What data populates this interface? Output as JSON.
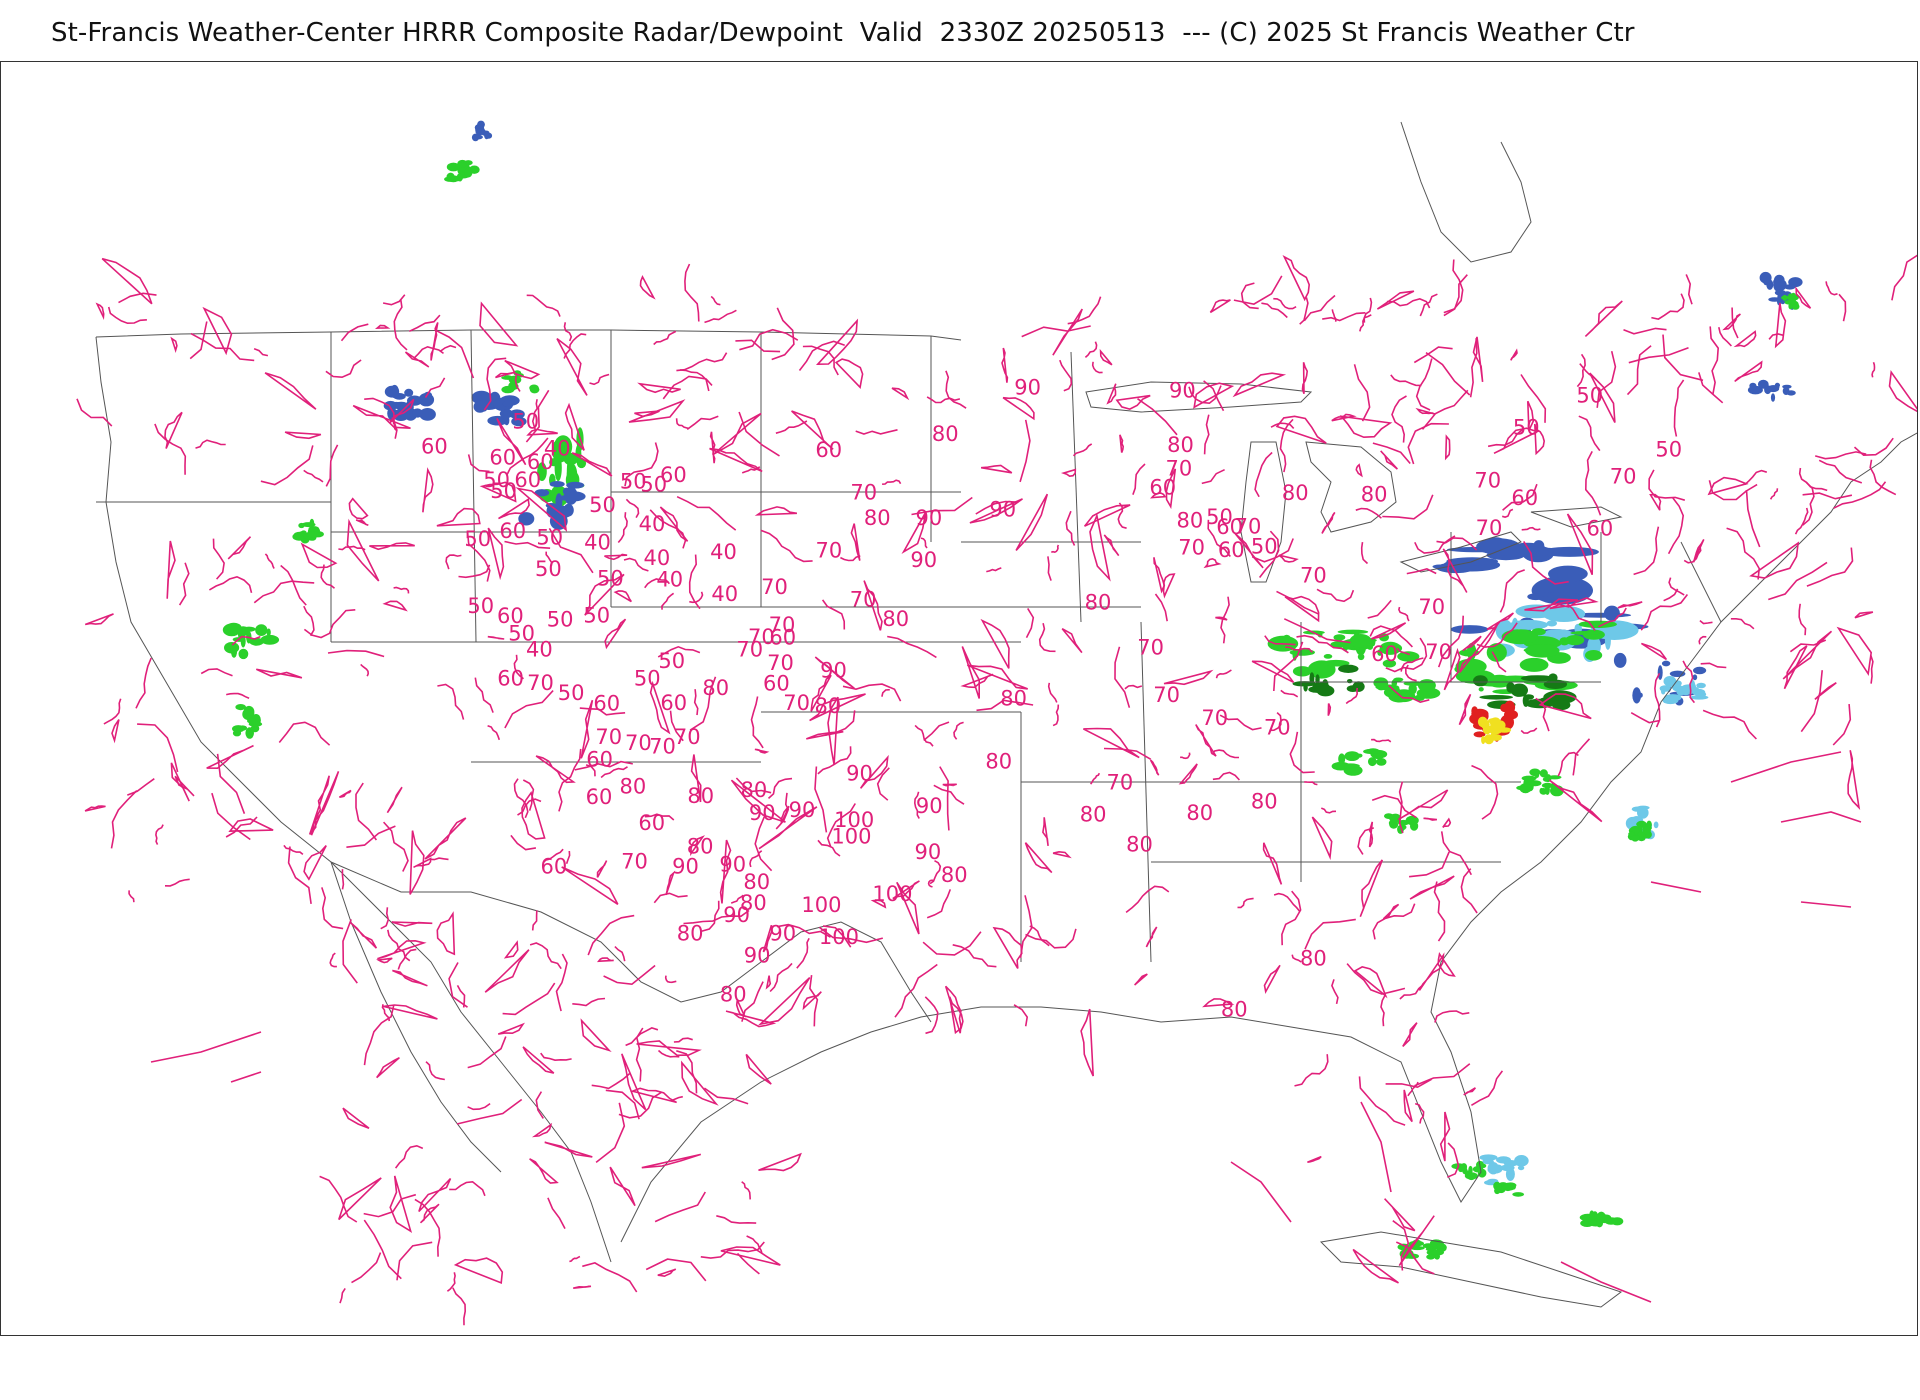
{
  "header": {
    "title": "St-Francis Weather-Center HRRR Composite Radar/Dewpoint  Valid  2330Z 20250513  --- (C) 2025 St Francis Weather Ctr"
  },
  "colors": {
    "dewpoint_contour": "#e0207a",
    "border": "#555555",
    "radar_light": "#6ec8e8",
    "radar_mid": "#3a5db8",
    "radar_green": "#2bd02b",
    "radar_dark_green": "#157a15",
    "radar_yellow": "#f0e020",
    "radar_red": "#e02020"
  },
  "dewpoint_labels": [
    {
      "text": "50",
      "lon": -119.5,
      "lat": 48.8
    },
    {
      "text": "40",
      "lon": -118.0,
      "lat": 47.6
    },
    {
      "text": "60",
      "lon": -124.6,
      "lat": 47.3
    },
    {
      "text": "60",
      "lon": -121.0,
      "lat": 47.0
    },
    {
      "text": "60",
      "lon": -119.0,
      "lat": 46.9
    },
    {
      "text": "60",
      "lon": -111.9,
      "lat": 46.6
    },
    {
      "text": "50",
      "lon": -114.1,
      "lat": 46.2
    },
    {
      "text": "50",
      "lon": -113.0,
      "lat": 46.1
    },
    {
      "text": "50",
      "lon": -121.5,
      "lat": 45.9
    },
    {
      "text": "60",
      "lon": -119.8,
      "lat": 46.0
    },
    {
      "text": "50",
      "lon": -121.2,
      "lat": 45.4
    },
    {
      "text": "50",
      "lon": -115.9,
      "lat": 45.0
    },
    {
      "text": "40",
      "lon": -113.3,
      "lat": 44.2
    },
    {
      "text": "60",
      "lon": -121.0,
      "lat": 43.5
    },
    {
      "text": "50",
      "lon": -119.0,
      "lat": 43.3
    },
    {
      "text": "40",
      "lon": -116.4,
      "lat": 43.2
    },
    {
      "text": "50",
      "lon": -123.0,
      "lat": 43.0
    },
    {
      "text": "40",
      "lon": -113.2,
      "lat": 42.6
    },
    {
      "text": "40",
      "lon": -109.5,
      "lat": 43.0
    },
    {
      "text": "50",
      "lon": -119.3,
      "lat": 41.8
    },
    {
      "text": "50",
      "lon": -115.9,
      "lat": 41.5
    },
    {
      "text": "40",
      "lon": -112.6,
      "lat": 41.6
    },
    {
      "text": "40",
      "lon": -109.6,
      "lat": 41.0
    },
    {
      "text": "50",
      "lon": -123.4,
      "lat": 39.8
    },
    {
      "text": "60",
      "lon": -121.8,
      "lat": 39.4
    },
    {
      "text": "50",
      "lon": -119.0,
      "lat": 39.4
    },
    {
      "text": "50",
      "lon": -116.9,
      "lat": 39.7
    },
    {
      "text": "50",
      "lon": -121.3,
      "lat": 38.6
    },
    {
      "text": "40",
      "lon": -120.4,
      "lat": 37.9
    },
    {
      "text": "60",
      "lon": -122.3,
      "lat": 36.4
    },
    {
      "text": "70",
      "lon": -120.6,
      "lat": 36.3
    },
    {
      "text": "50",
      "lon": -118.9,
      "lat": 35.9
    },
    {
      "text": "60",
      "lon": -116.9,
      "lat": 35.5
    },
    {
      "text": "50",
      "lon": -112.9,
      "lat": 37.7
    },
    {
      "text": "50",
      "lon": -114.4,
      "lat": 36.8
    },
    {
      "text": "60",
      "lon": -113.0,
      "lat": 35.7
    },
    {
      "text": "80",
      "lon": -110.5,
      "lat": 36.5
    },
    {
      "text": "70",
      "lon": -107.7,
      "lat": 39.0
    },
    {
      "text": "60",
      "lon": -106.5,
      "lat": 39.0
    },
    {
      "text": "70",
      "lon": -108.4,
      "lat": 38.4
    },
    {
      "text": "70",
      "lon": -106.7,
      "lat": 37.8
    },
    {
      "text": "60",
      "lon": -107.0,
      "lat": 36.8
    },
    {
      "text": "70",
      "lon": -117.0,
      "lat": 33.9
    },
    {
      "text": "70",
      "lon": -115.3,
      "lat": 33.7
    },
    {
      "text": "70",
      "lon": -113.9,
      "lat": 33.6
    },
    {
      "text": "70",
      "lon": -112.4,
      "lat": 34.1
    },
    {
      "text": "60",
      "lon": -117.7,
      "lat": 32.8
    },
    {
      "text": "80",
      "lon": -115.9,
      "lat": 31.6
    },
    {
      "text": "60",
      "lon": -118.0,
      "lat": 31.0
    },
    {
      "text": "80",
      "lon": -111.9,
      "lat": 31.3
    },
    {
      "text": "60",
      "lon": -115.0,
      "lat": 29.9
    },
    {
      "text": "80",
      "lon": -112.2,
      "lat": 28.9
    },
    {
      "text": "70",
      "lon": -116.3,
      "lat": 28.0
    },
    {
      "text": "60",
      "lon": -121.3,
      "lat": 27.5
    },
    {
      "text": "90",
      "lon": -113.2,
      "lat": 27.9
    },
    {
      "text": "90",
      "lon": -110.3,
      "lat": 28.1
    },
    {
      "text": "80",
      "lon": -108.9,
      "lat": 27.3
    },
    {
      "text": "80",
      "lon": -109.2,
      "lat": 26.3
    },
    {
      "text": "90",
      "lon": -110.3,
      "lat": 25.7
    },
    {
      "text": "80",
      "lon": -113.3,
      "lat": 24.7
    },
    {
      "text": "90",
      "lon": -107.5,
      "lat": 24.9
    },
    {
      "text": "90",
      "lon": -109.2,
      "lat": 23.8
    },
    {
      "text": "80",
      "lon": -110.9,
      "lat": 21.9
    },
    {
      "text": "100",
      "lon": -105.0,
      "lat": 26.3
    },
    {
      "text": "100",
      "lon": -104.0,
      "lat": 24.8
    },
    {
      "text": "100",
      "lon": -100.6,
      "lat": 26.9
    },
    {
      "text": "70",
      "lon": -105.9,
      "lat": 35.9
    },
    {
      "text": "80",
      "lon": -104.1,
      "lat": 35.8
    },
    {
      "text": "80",
      "lon": -108.7,
      "lat": 31.7
    },
    {
      "text": "90",
      "lon": -108.3,
      "lat": 30.6
    },
    {
      "text": "90",
      "lon": -105.9,
      "lat": 30.8
    },
    {
      "text": "100",
      "lon": -102.8,
      "lat": 30.4
    },
    {
      "text": "100",
      "lon": -103.0,
      "lat": 29.6
    },
    {
      "text": "90",
      "lon": -102.4,
      "lat": 32.6
    },
    {
      "text": "90",
      "lon": -98.3,
      "lat": 31.1
    },
    {
      "text": "90",
      "lon": -98.4,
      "lat": 28.9
    },
    {
      "text": "80",
      "lon": -96.8,
      "lat": 27.8
    },
    {
      "text": "90",
      "lon": -103.7,
      "lat": 37.5
    },
    {
      "text": "60",
      "lon": -103.5,
      "lat": 48.0
    },
    {
      "text": "70",
      "lon": -101.7,
      "lat": 46.0
    },
    {
      "text": "80",
      "lon": -101.0,
      "lat": 44.8
    },
    {
      "text": "90",
      "lon": -98.2,
      "lat": 44.8
    },
    {
      "text": "70",
      "lon": -103.7,
      "lat": 43.2
    },
    {
      "text": "90",
      "lon": -98.5,
      "lat": 42.8
    },
    {
      "text": "70",
      "lon": -101.9,
      "lat": 40.9
    },
    {
      "text": "80",
      "lon": -100.1,
      "lat": 40.0
    },
    {
      "text": "70",
      "lon": -106.8,
      "lat": 41.4
    },
    {
      "text": "70",
      "lon": -106.5,
      "lat": 39.6
    },
    {
      "text": "80",
      "lon": -97.3,
      "lat": 48.8
    },
    {
      "text": "90",
      "lon": -93.0,
      "lat": 51.0
    },
    {
      "text": "90",
      "lon": -94.2,
      "lat": 45.2
    },
    {
      "text": "90",
      "lon": -84.9,
      "lat": 50.7
    },
    {
      "text": "80",
      "lon": -84.8,
      "lat": 48.1
    },
    {
      "text": "70",
      "lon": -84.8,
      "lat": 47.0
    },
    {
      "text": "60",
      "lon": -85.6,
      "lat": 46.1
    },
    {
      "text": "80",
      "lon": -84.0,
      "lat": 44.5
    },
    {
      "text": "50",
      "lon": -82.4,
      "lat": 44.6
    },
    {
      "text": "60",
      "lon": -81.8,
      "lat": 44.1
    },
    {
      "text": "70",
      "lon": -80.8,
      "lat": 44.1
    },
    {
      "text": "70",
      "lon": -83.8,
      "lat": 43.2
    },
    {
      "text": "60",
      "lon": -81.6,
      "lat": 43.0
    },
    {
      "text": "50",
      "lon": -79.8,
      "lat": 43.1
    },
    {
      "text": "80",
      "lon": -78.4,
      "lat": 45.6
    },
    {
      "text": "80",
      "lon": -74.1,
      "lat": 45.3
    },
    {
      "text": "80",
      "lon": -88.8,
      "lat": 40.7
    },
    {
      "text": "70",
      "lon": -85.7,
      "lat": 38.5
    },
    {
      "text": "80",
      "lon": -93.4,
      "lat": 36.2
    },
    {
      "text": "70",
      "lon": -84.6,
      "lat": 36.2
    },
    {
      "text": "70",
      "lon": -81.7,
      "lat": 35.0
    },
    {
      "text": "70",
      "lon": -78.0,
      "lat": 34.4
    },
    {
      "text": "80",
      "lon": -94.2,
      "lat": 33.2
    },
    {
      "text": "70",
      "lon": -87.0,
      "lat": 32.1
    },
    {
      "text": "80",
      "lon": -88.5,
      "lat": 30.6
    },
    {
      "text": "80",
      "lon": -85.6,
      "lat": 29.1
    },
    {
      "text": "80",
      "lon": -82.1,
      "lat": 30.5
    },
    {
      "text": "80",
      "lon": -78.3,
      "lat": 30.9
    },
    {
      "text": "80",
      "lon": -74.1,
      "lat": 23.2
    },
    {
      "text": "80",
      "lon": -78.8,
      "lat": 21.0
    },
    {
      "text": "70",
      "lon": -76.9,
      "lat": 41.6
    },
    {
      "text": "70",
      "lon": -70.0,
      "lat": 39.7
    },
    {
      "text": "60",
      "lon": -72.3,
      "lat": 37.6
    },
    {
      "text": "70",
      "lon": -69.2,
      "lat": 37.5
    },
    {
      "text": "70",
      "lon": -67.5,
      "lat": 43.3
    },
    {
      "text": "60",
      "lon": -65.8,
      "lat": 44.6
    },
    {
      "text": "70",
      "lon": -68.0,
      "lat": 45.6
    },
    {
      "text": "50",
      "lon": -66.4,
      "lat": 48.0
    },
    {
      "text": "50",
      "lon": -63.3,
      "lat": 49.3
    },
    {
      "text": "70",
      "lon": -60.6,
      "lat": 45.2
    },
    {
      "text": "50",
      "lon": -58.4,
      "lat": 46.3
    },
    {
      "text": "60",
      "lon": -61.3,
      "lat": 42.8
    }
  ]
}
